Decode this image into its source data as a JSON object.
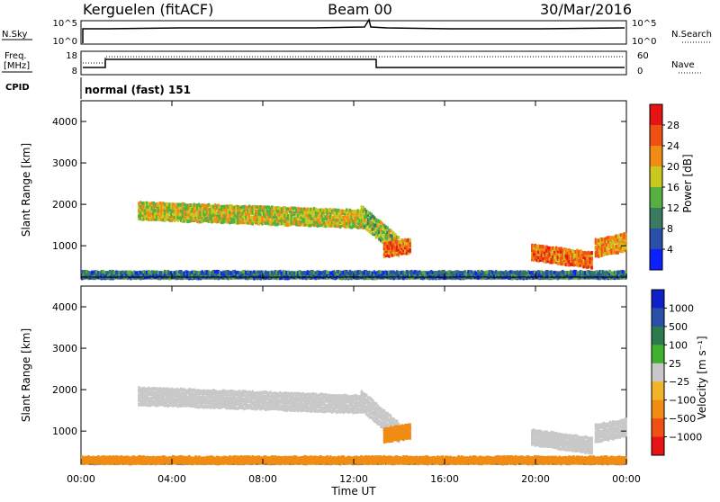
{
  "header": {
    "station": "Kerguelen (fitACF)",
    "beam": "Beam 00",
    "date": "30/Mar/2016"
  },
  "strip1": {
    "left_label": "N.Sky",
    "left_ticks": [
      "10^5",
      "10^0"
    ],
    "right_label": "N.Search",
    "right_ticks": [
      "10^5",
      "10^0"
    ]
  },
  "strip2": {
    "left_label_1": "Freq.",
    "left_label_2": "[MHz]",
    "left_ticks": [
      "18",
      "8"
    ],
    "right_label": "Nave",
    "right_ticks": [
      "60",
      "0"
    ]
  },
  "cpid": {
    "label": "CPID",
    "value": "normal (fast) 151"
  },
  "colors": {
    "power": [
      "#0a20ff",
      "#2a4fa8",
      "#3a7a60",
      "#55b040",
      "#c8c81e",
      "#f08c14",
      "#f05014",
      "#e61414"
    ],
    "velocity": [
      "#e61414",
      "#f05014",
      "#f08c14",
      "#f0b428",
      "#c8c8c8",
      "#40b030",
      "#2c7a50",
      "#2a4fa8",
      "#1020c8"
    ]
  },
  "chart_data": [
    {
      "type": "heatmap",
      "title": "",
      "xlabel": "",
      "ylabel": "Slant Range [km]",
      "ylim": [
        200,
        4500
      ],
      "xlim_hours": [
        0,
        24
      ],
      "yticks": [
        "4000",
        "3000",
        "2000",
        "1000"
      ],
      "colorbar": {
        "label": "Power [dB]",
        "ticks": [
          "28",
          "24",
          "20",
          "16",
          "12",
          "8",
          "4"
        ],
        "range": [
          0,
          32
        ]
      },
      "echo_regions": [
        {
          "t0": 2.5,
          "t1": 12.5,
          "r_start": 1900,
          "r_end": 1700,
          "thick": 450,
          "level": 18
        },
        {
          "t0": 12.3,
          "t1": 14.0,
          "r_start": 1800,
          "r_end": 1000,
          "thick": 500,
          "level": 16
        },
        {
          "t0": 13.3,
          "t1": 14.5,
          "r_start": 950,
          "r_end": 1050,
          "thick": 350,
          "level": 24
        },
        {
          "t0": 19.8,
          "t1": 22.5,
          "r_start": 900,
          "r_end": 700,
          "thick": 400,
          "level": 24
        },
        {
          "t0": 22.6,
          "t1": 24.0,
          "r_start": 1000,
          "r_end": 1150,
          "thick": 450,
          "level": 22
        },
        {
          "t0": 0.0,
          "t1": 24.0,
          "r_start": 330,
          "r_end": 330,
          "thick": 150,
          "level": 8
        }
      ]
    },
    {
      "type": "heatmap",
      "title": "",
      "xlabel": "Time UT",
      "ylabel": "Slant Range [km]",
      "ylim": [
        200,
        4500
      ],
      "xlim_hours": [
        0,
        24
      ],
      "yticks": [
        "4000",
        "3000",
        "2000",
        "1000"
      ],
      "xticks": [
        "00:00",
        "04:00",
        "08:00",
        "12:00",
        "16:00",
        "20:00",
        "00:00"
      ],
      "colorbar": {
        "label": "Velocity [m s⁻¹]",
        "ticks": [
          "1000",
          "500",
          "100",
          "25",
          "−25",
          "−100",
          "−500",
          "−1000"
        ]
      },
      "echo_regions": [
        {
          "t0": 2.5,
          "t1": 12.5,
          "r_start": 1900,
          "r_end": 1700,
          "thick": 450,
          "velocity": 0
        },
        {
          "t0": 12.3,
          "t1": 14.0,
          "r_start": 1800,
          "r_end": 1000,
          "thick": 500,
          "velocity": 0
        },
        {
          "t0": 13.3,
          "t1": 14.5,
          "r_start": 950,
          "r_end": 1050,
          "thick": 350,
          "velocity": -300
        },
        {
          "t0": 19.8,
          "t1": 22.5,
          "r_start": 900,
          "r_end": 700,
          "thick": 400,
          "velocity": 0
        },
        {
          "t0": 22.6,
          "t1": 24.0,
          "r_start": 1000,
          "r_end": 1150,
          "thick": 450,
          "velocity": 0
        },
        {
          "t0": 0.0,
          "t1": 24.0,
          "r_start": 330,
          "r_end": 330,
          "thick": 150,
          "velocity": -150
        }
      ]
    }
  ]
}
